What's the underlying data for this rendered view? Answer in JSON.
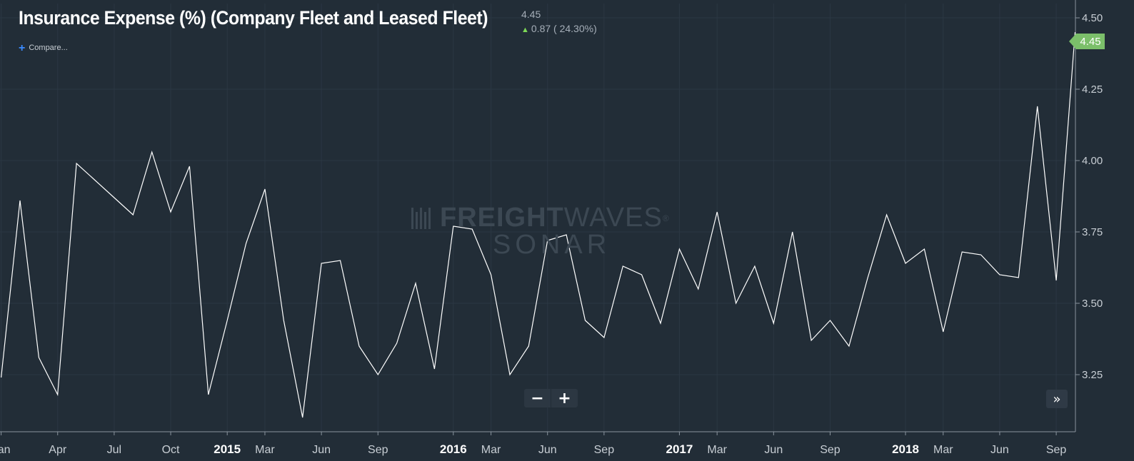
{
  "header": {
    "title": "Insurance Expense (%) (Company Fleet and Leased Fleet)",
    "last_value": "4.45",
    "change": "0.87 ( 24.30%)",
    "compare_label": "Compare...",
    "last_badge": "4.45"
  },
  "watermark": {
    "brand_bold": "FREIGHT",
    "brand_light": "WAVES",
    "registered": "®",
    "sub": "SONAR"
  },
  "controls": {
    "zoom_out": "−",
    "zoom_in": "+",
    "forward": "»",
    "forward_icon": "double-chevron-right-icon"
  },
  "colors": {
    "background": "#222d37",
    "line": "#ffffff",
    "grid": "#2b3743",
    "axis_text": "#c8ced4",
    "badge": "#7bbf6a",
    "up_arrow": "#7ed957"
  },
  "chart_data": {
    "type": "line",
    "title": "Insurance Expense (%) (Company Fleet and Leased Fleet)",
    "xlabel": "",
    "ylabel": "",
    "ylim": [
      3.05,
      4.55
    ],
    "y_ticks": [
      3.25,
      3.5,
      3.75,
      4.0,
      4.25,
      4.5
    ],
    "y_tick_labels": [
      "3.25",
      "3.50",
      "3.75",
      "4.00",
      "4.25",
      "4.50"
    ],
    "x_range": [
      "2014-01",
      "2018-10"
    ],
    "x_ticks": [
      {
        "date": "2014-01",
        "label": "Jan",
        "bold": false
      },
      {
        "date": "2014-04",
        "label": "Apr",
        "bold": false
      },
      {
        "date": "2014-07",
        "label": "Jul",
        "bold": false
      },
      {
        "date": "2014-10",
        "label": "Oct",
        "bold": false
      },
      {
        "date": "2015-01",
        "label": "2015",
        "bold": true
      },
      {
        "date": "2015-03",
        "label": "Mar",
        "bold": false
      },
      {
        "date": "2015-06",
        "label": "Jun",
        "bold": false
      },
      {
        "date": "2015-09",
        "label": "Sep",
        "bold": false
      },
      {
        "date": "2016-01",
        "label": "2016",
        "bold": true
      },
      {
        "date": "2016-03",
        "label": "Mar",
        "bold": false
      },
      {
        "date": "2016-06",
        "label": "Jun",
        "bold": false
      },
      {
        "date": "2016-09",
        "label": "Sep",
        "bold": false
      },
      {
        "date": "2017-01",
        "label": "2017",
        "bold": true
      },
      {
        "date": "2017-03",
        "label": "Mar",
        "bold": false
      },
      {
        "date": "2017-06",
        "label": "Jun",
        "bold": false
      },
      {
        "date": "2017-09",
        "label": "Sep",
        "bold": false
      },
      {
        "date": "2018-01",
        "label": "2018",
        "bold": true
      },
      {
        "date": "2018-03",
        "label": "Mar",
        "bold": false
      },
      {
        "date": "2018-06",
        "label": "Jun",
        "bold": false
      },
      {
        "date": "2018-09",
        "label": "Sep",
        "bold": false
      }
    ],
    "grid": true,
    "series": [
      {
        "x": [
          "2014-01",
          "2014-02",
          "2014-03",
          "2014-04",
          "2014-05",
          "2014-06",
          "2014-07",
          "2014-08",
          "2014-09",
          "2014-10",
          "2014-11",
          "2014-12",
          "2015-01",
          "2015-02",
          "2015-03",
          "2015-04",
          "2015-05",
          "2015-06",
          "2015-07",
          "2015-08",
          "2015-09",
          "2015-10",
          "2015-11",
          "2015-12",
          "2016-01",
          "2016-02",
          "2016-03",
          "2016-04",
          "2016-05",
          "2016-06",
          "2016-07",
          "2016-08",
          "2016-09",
          "2016-10",
          "2016-11",
          "2016-12",
          "2017-01",
          "2017-02",
          "2017-03",
          "2017-04",
          "2017-05",
          "2017-06",
          "2017-07",
          "2017-08",
          "2017-09",
          "2017-10",
          "2017-11",
          "2017-12",
          "2018-01",
          "2018-02",
          "2018-03",
          "2018-04",
          "2018-05",
          "2018-06",
          "2018-07",
          "2018-08",
          "2018-09",
          "2018-10"
        ],
        "values": [
          3.24,
          3.86,
          3.31,
          3.18,
          3.99,
          3.93,
          3.87,
          3.81,
          4.03,
          3.82,
          3.98,
          3.18,
          3.44,
          3.71,
          3.9,
          3.44,
          3.1,
          3.64,
          3.65,
          3.35,
          3.25,
          3.36,
          3.57,
          3.27,
          3.77,
          3.76,
          3.6,
          3.25,
          3.35,
          3.72,
          3.74,
          3.44,
          3.38,
          3.63,
          3.6,
          3.43,
          3.69,
          3.55,
          3.82,
          3.5,
          3.63,
          3.43,
          3.75,
          3.37,
          3.44,
          3.35,
          3.59,
          3.81,
          3.64,
          3.69,
          3.4,
          3.68,
          3.67,
          3.6,
          3.59,
          4.19,
          3.58,
          4.45
        ]
      }
    ]
  }
}
